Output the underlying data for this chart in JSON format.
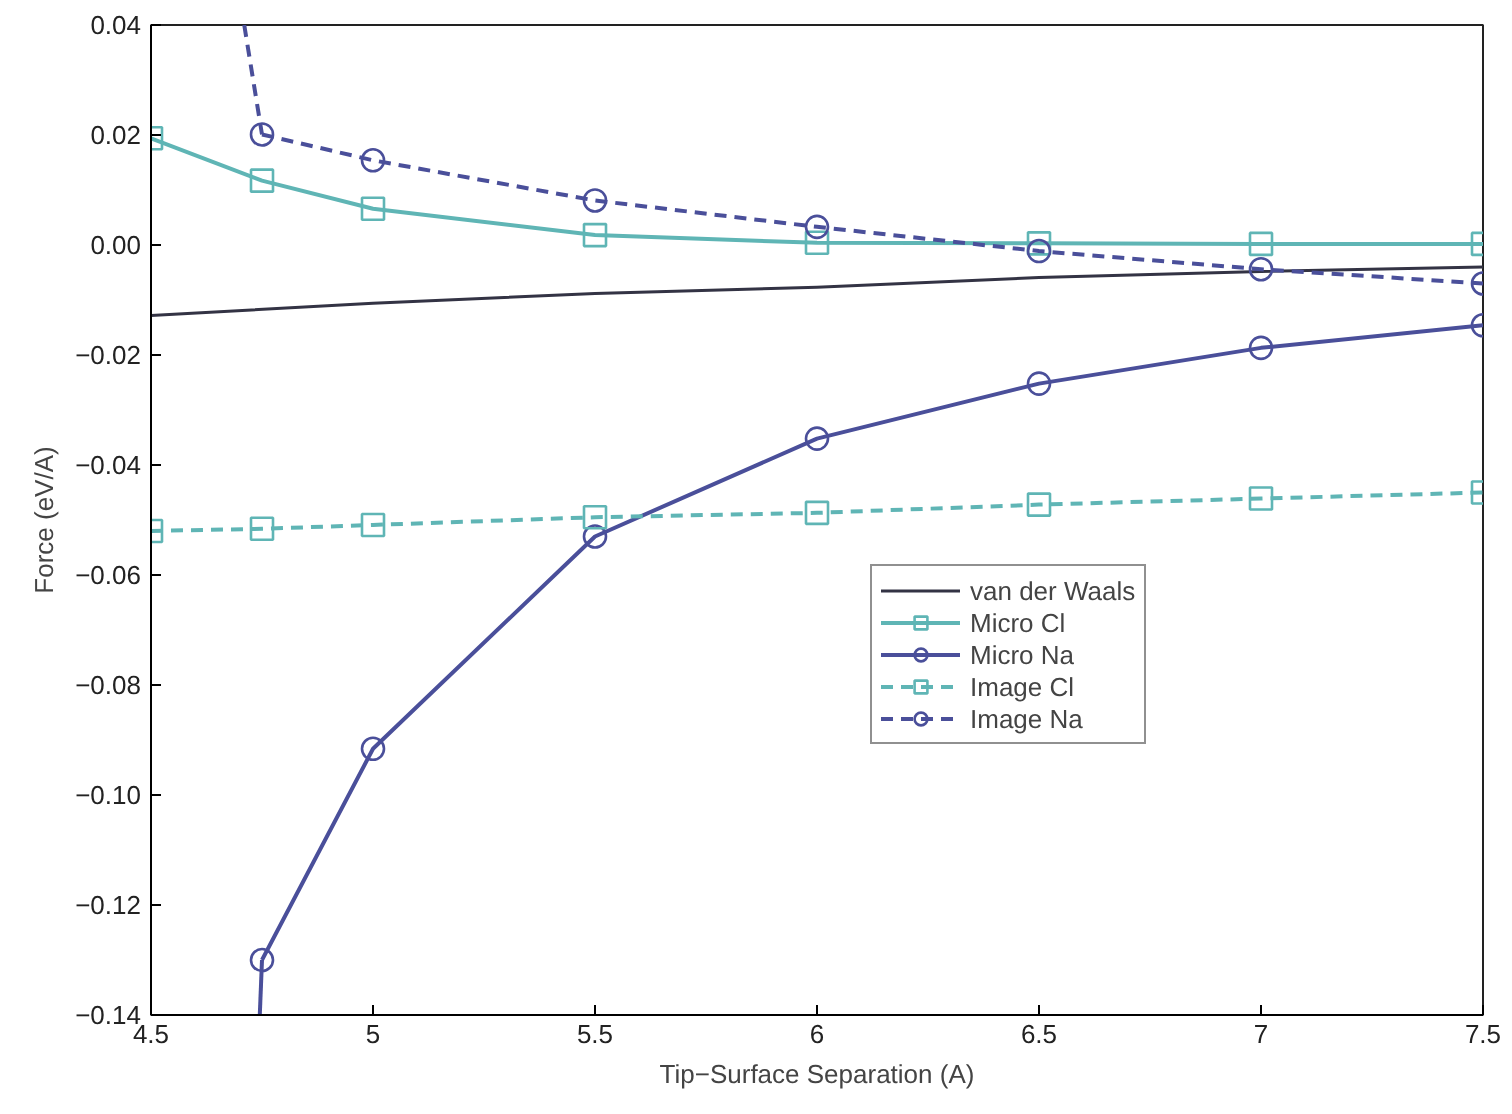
{
  "chart_data": {
    "type": "line",
    "xlabel": "Tip−Surface Separation (A)",
    "ylabel": "Force (eV/A)",
    "xlim": [
      4.5,
      7.5
    ],
    "ylim": [
      -0.14,
      0.04
    ],
    "xticks": [
      4.5,
      5,
      5.5,
      6,
      6.5,
      7,
      7.5
    ],
    "yticks": [
      {
        "value": -0.14,
        "label": "−0.14"
      },
      {
        "value": -0.12,
        "label": "−0.12"
      },
      {
        "value": -0.1,
        "label": "−0.10"
      },
      {
        "value": -0.08,
        "label": "−0.08"
      },
      {
        "value": -0.06,
        "label": "−0.06"
      },
      {
        "value": -0.04,
        "label": "−0.04"
      },
      {
        "value": -0.02,
        "label": "−0.02"
      },
      {
        "value": 0,
        "label": "0.00"
      },
      {
        "value": 0.02,
        "label": "0.02"
      },
      {
        "value": 0.04,
        "label": "0.04"
      }
    ],
    "grid": false,
    "legend": "right",
    "series": [
      {
        "name": "van der Waals",
        "color": "#333344",
        "marker": "none",
        "line_style": "solid",
        "x": [
          4.5,
          5,
          5.5,
          6,
          6.5,
          7,
          7.5
        ],
        "values": [
          -0.0128,
          -0.0106,
          -0.0088,
          -0.0077,
          -0.0059,
          -0.0048,
          -0.004
        ]
      },
      {
        "name": "Micro Cl",
        "color": "#5fb5b5",
        "marker": "square",
        "line_style": "solid",
        "x": [
          4.5,
          4.75,
          5,
          5.5,
          6,
          6.5,
          7,
          7.5
        ],
        "values": [
          0.0194,
          0.0117,
          0.0066,
          0.0018,
          0.0004,
          0.0003,
          0.0002,
          0.0002
        ]
      },
      {
        "name": "Micro Na",
        "color": "#4a4f9a",
        "marker": "circle",
        "line_style": "solid",
        "x": [
          4.75,
          5,
          5.5,
          6,
          6.5,
          7,
          7.5
        ],
        "values": [
          -0.13,
          -0.0916,
          -0.053,
          -0.0352,
          -0.0252,
          -0.0187,
          -0.0146
        ]
      },
      {
        "name": "Image Cl",
        "color": "#5fb5b5",
        "marker": "square",
        "line_style": "dashed",
        "x": [
          4.5,
          4.75,
          5,
          5.5,
          6,
          6.5,
          7,
          7.5
        ],
        "values": [
          -0.052,
          -0.0516,
          -0.0509,
          -0.0495,
          -0.0487,
          -0.0472,
          -0.0461,
          -0.045
        ]
      },
      {
        "name": "Image Na",
        "color": "#4a4f9a",
        "marker": "circle",
        "line_style": "dashed",
        "x": [
          4.75,
          5,
          5.5,
          6,
          6.5,
          7,
          7.5
        ],
        "values": [
          0.0201,
          0.0154,
          0.0081,
          0.0033,
          -0.0011,
          -0.0044,
          -0.007
        ]
      },
      {
        "color": "#4a4f9a",
        "marker": "none",
        "line_style": "solid",
        "x": [
          4.745,
          4.75
        ],
        "values": [
          -0.14,
          -0.13
        ]
      },
      {
        "color": "#4a4f9a",
        "marker": "none",
        "line_style": "dashed",
        "x": [
          4.71,
          4.75
        ],
        "values": [
          0.04,
          0.0201
        ]
      }
    ]
  }
}
